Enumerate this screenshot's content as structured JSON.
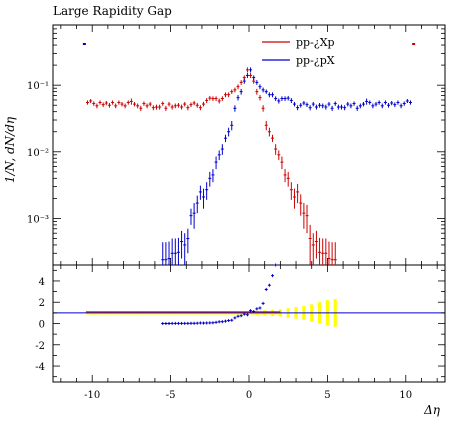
{
  "chart_data": {
    "type": "scatter",
    "title": "Large Rapidity Gap",
    "ylabel": "1/N, dN/dη",
    "xlabel": "Δη",
    "x_ticks": [
      -10,
      -5,
      0,
      5,
      10
    ],
    "x_tick_labels": [
      "-10",
      "-5",
      "0",
      "5",
      "10"
    ],
    "xlim": [
      -12.5,
      12.5
    ],
    "ylim_log": [
      0.0002,
      0.8
    ],
    "y_ticks": [
      0.001,
      0.01,
      0.1
    ],
    "y_tick_labels": [
      "10⁻³",
      "10⁻²",
      "10⁻¹"
    ],
    "series": [
      {
        "name": "pp-¿Xp",
        "color": "#cc0000",
        "x": [
          -10.3,
          -10.1,
          -9.9,
          -9.7,
          -9.5,
          -9.3,
          -9.1,
          -8.9,
          -8.7,
          -8.5,
          -8.3,
          -8.1,
          -7.9,
          -7.7,
          -7.5,
          -7.3,
          -7.1,
          -6.9,
          -6.7,
          -6.5,
          -6.3,
          -6.1,
          -5.9,
          -5.7,
          -5.5,
          -5.3,
          -5.1,
          -4.9,
          -4.7,
          -4.5,
          -4.3,
          -4.1,
          -3.9,
          -3.7,
          -3.5,
          -3.3,
          -3.1,
          -2.9,
          -2.7,
          -2.5,
          -2.3,
          -2.1,
          -1.9,
          -1.7,
          -1.5,
          -1.3,
          -1.1,
          -0.9,
          -0.7,
          -0.5,
          -0.3,
          -0.1,
          0.1,
          0.3,
          0.5,
          0.7,
          0.9,
          1.1,
          1.3,
          1.5,
          1.7,
          1.9,
          2.1,
          2.3,
          2.5,
          2.7,
          2.9,
          3.1,
          3.3,
          3.5,
          3.7,
          3.9,
          4.1,
          4.3,
          4.5,
          4.7,
          4.9,
          5.1,
          5.3,
          5.5
        ],
        "y": [
          0.055,
          0.058,
          0.053,
          0.049,
          0.055,
          0.051,
          0.054,
          0.05,
          0.055,
          0.049,
          0.055,
          0.052,
          0.049,
          0.055,
          0.057,
          0.052,
          0.049,
          0.045,
          0.053,
          0.049,
          0.052,
          0.046,
          0.047,
          0.047,
          0.053,
          0.045,
          0.052,
          0.047,
          0.049,
          0.05,
          0.047,
          0.052,
          0.046,
          0.051,
          0.054,
          0.05,
          0.046,
          0.052,
          0.059,
          0.064,
          0.063,
          0.063,
          0.058,
          0.063,
          0.072,
          0.072,
          0.08,
          0.085,
          0.095,
          0.11,
          0.13,
          0.17,
          0.14,
          0.115,
          0.08,
          0.065,
          0.045,
          0.025,
          0.02,
          0.016,
          0.011,
          0.009,
          0.007,
          0.0045,
          0.004,
          0.0027,
          0.0021,
          0.0025,
          0.0017,
          0.0012,
          0.0011,
          0.0005,
          0.0004,
          0.00045,
          0.00031,
          0.0003,
          0.0003,
          0.00025,
          0.00024,
          0.00024
        ],
        "y_err": [
          0.004,
          0.004,
          0.004,
          0.004,
          0.004,
          0.004,
          0.004,
          0.004,
          0.004,
          0.004,
          0.004,
          0.004,
          0.004,
          0.004,
          0.006,
          0.004,
          0.004,
          0.004,
          0.004,
          0.004,
          0.004,
          0.004,
          0.004,
          0.004,
          0.004,
          0.004,
          0.004,
          0.004,
          0.004,
          0.004,
          0.004,
          0.004,
          0.004,
          0.004,
          0.004,
          0.004,
          0.004,
          0.004,
          0.005,
          0.005,
          0.005,
          0.005,
          0.005,
          0.005,
          0.006,
          0.006,
          0.006,
          0.007,
          0.008,
          0.009,
          0.01,
          0.015,
          0.012,
          0.01,
          0.008,
          0.006,
          0.005,
          0.004,
          0.003,
          0.002,
          0.002,
          0.0015,
          0.0015,
          0.001,
          0.001,
          0.0008,
          0.0007,
          0.0008,
          0.0006,
          0.0005,
          0.0005,
          0.0003,
          0.0002,
          0.0002,
          0.0002,
          0.0002,
          0.0002,
          0.0002,
          0.0002,
          0.0002
        ]
      },
      {
        "name": "pp-¿pX",
        "color": "#0000cc",
        "x": [
          -5.5,
          -5.3,
          -5.1,
          -4.9,
          -4.7,
          -4.5,
          -4.3,
          -4.1,
          -3.9,
          -3.7,
          -3.5,
          -3.3,
          -3.1,
          -2.9,
          -2.7,
          -2.5,
          -2.3,
          -2.1,
          -1.9,
          -1.7,
          -1.5,
          -1.3,
          -1.1,
          -0.9,
          -0.7,
          -0.5,
          -0.3,
          -0.1,
          0.1,
          0.3,
          0.5,
          0.7,
          0.9,
          1.1,
          1.3,
          1.5,
          1.7,
          1.9,
          2.1,
          2.3,
          2.5,
          2.7,
          2.9,
          3.1,
          3.3,
          3.5,
          3.7,
          3.9,
          4.1,
          4.3,
          4.5,
          4.7,
          4.9,
          5.1,
          5.3,
          5.5,
          5.7,
          5.9,
          6.1,
          6.3,
          6.5,
          6.7,
          6.9,
          7.1,
          7.3,
          7.5,
          7.7,
          7.9,
          8.1,
          8.3,
          8.5,
          8.7,
          8.9,
          9.1,
          9.3,
          9.5,
          9.7,
          9.9,
          10.1,
          10.3
        ],
        "y": [
          0.00024,
          0.00024,
          0.00025,
          0.0003,
          0.0003,
          0.00031,
          0.00045,
          0.0004,
          0.0005,
          0.0011,
          0.0012,
          0.0017,
          0.0025,
          0.0021,
          0.0027,
          0.004,
          0.0045,
          0.007,
          0.009,
          0.011,
          0.016,
          0.02,
          0.025,
          0.045,
          0.065,
          0.08,
          0.115,
          0.14,
          0.17,
          0.13,
          0.11,
          0.095,
          0.085,
          0.08,
          0.072,
          0.072,
          0.063,
          0.058,
          0.063,
          0.063,
          0.064,
          0.059,
          0.052,
          0.046,
          0.05,
          0.054,
          0.051,
          0.046,
          0.052,
          0.047,
          0.05,
          0.049,
          0.047,
          0.052,
          0.045,
          0.053,
          0.047,
          0.047,
          0.046,
          0.052,
          0.049,
          0.053,
          0.045,
          0.049,
          0.052,
          0.057,
          0.055,
          0.049,
          0.052,
          0.055,
          0.049,
          0.055,
          0.05,
          0.054,
          0.051,
          0.055,
          0.049,
          0.053,
          0.058,
          0.055
        ],
        "y_err": [
          0.0002,
          0.0002,
          0.0002,
          0.0002,
          0.0002,
          0.0002,
          0.0002,
          0.0002,
          0.0002,
          0.0003,
          0.0005,
          0.0005,
          0.0006,
          0.0007,
          0.0008,
          0.001,
          0.001,
          0.0015,
          0.0015,
          0.002,
          0.002,
          0.003,
          0.004,
          0.005,
          0.006,
          0.008,
          0.01,
          0.012,
          0.015,
          0.01,
          0.009,
          0.008,
          0.007,
          0.006,
          0.006,
          0.006,
          0.005,
          0.005,
          0.005,
          0.005,
          0.005,
          0.005,
          0.004,
          0.004,
          0.004,
          0.004,
          0.004,
          0.004,
          0.004,
          0.004,
          0.004,
          0.004,
          0.004,
          0.004,
          0.004,
          0.004,
          0.004,
          0.004,
          0.004,
          0.004,
          0.004,
          0.004,
          0.004,
          0.004,
          0.004,
          0.006,
          0.004,
          0.004,
          0.004,
          0.004,
          0.004,
          0.004,
          0.004,
          0.004,
          0.004,
          0.004,
          0.004,
          0.004,
          0.004,
          0.004
        ]
      }
    ],
    "overflow_markers": [
      {
        "x": -10.5,
        "color": "#0000cc"
      },
      {
        "x": 10.5,
        "color": "#cc0000"
      }
    ],
    "ratio_panel": {
      "ylim": [
        -5.5,
        5.5
      ],
      "y_ticks": [
        -4,
        -2,
        0,
        2,
        4
      ],
      "y_tick_labels": [
        "-4",
        "-2",
        "0",
        "2",
        "4"
      ],
      "reference": {
        "value": 1,
        "color": "#cc0000"
      },
      "ratio_line_color": "#0000cc",
      "band_color": "#ffff00",
      "ratio_x": [
        -5.5,
        -5.3,
        -5.1,
        -4.9,
        -4.7,
        -4.5,
        -4.3,
        -4.1,
        -3.9,
        -3.7,
        -3.5,
        -3.3,
        -3.1,
        -2.9,
        -2.7,
        -2.5,
        -2.3,
        -2.1,
        -1.9,
        -1.7,
        -1.5,
        -1.3,
        -1.1,
        -0.9,
        -0.7,
        -0.5,
        -0.3,
        -0.1,
        0.1,
        0.3,
        0.5,
        0.7,
        0.9,
        1.1,
        1.3,
        1.5,
        1.7
      ],
      "ratio_y": [
        0.0,
        0.0,
        0.0,
        0.01,
        0.01,
        0.01,
        0.01,
        0.01,
        0.01,
        0.02,
        0.02,
        0.03,
        0.05,
        0.04,
        0.05,
        0.06,
        0.07,
        0.11,
        0.16,
        0.17,
        0.22,
        0.28,
        0.31,
        0.53,
        0.68,
        0.73,
        0.88,
        0.82,
        1.21,
        1.13,
        1.38,
        1.46,
        1.89,
        3.2,
        3.6,
        4.5,
        5.7
      ],
      "band_x": [
        -10.3,
        -9.0,
        -7.0,
        -5.0,
        -3.0,
        -1.0,
        0.5,
        1.0,
        1.5,
        2.0,
        2.5,
        3.0,
        3.5,
        4.0,
        4.5,
        5.0,
        5.5
      ],
      "band_half_width": [
        0.15,
        0.15,
        0.15,
        0.15,
        0.15,
        0.15,
        0.2,
        0.25,
        0.3,
        0.35,
        0.45,
        0.55,
        0.65,
        0.8,
        1.0,
        1.2,
        1.3
      ]
    }
  }
}
